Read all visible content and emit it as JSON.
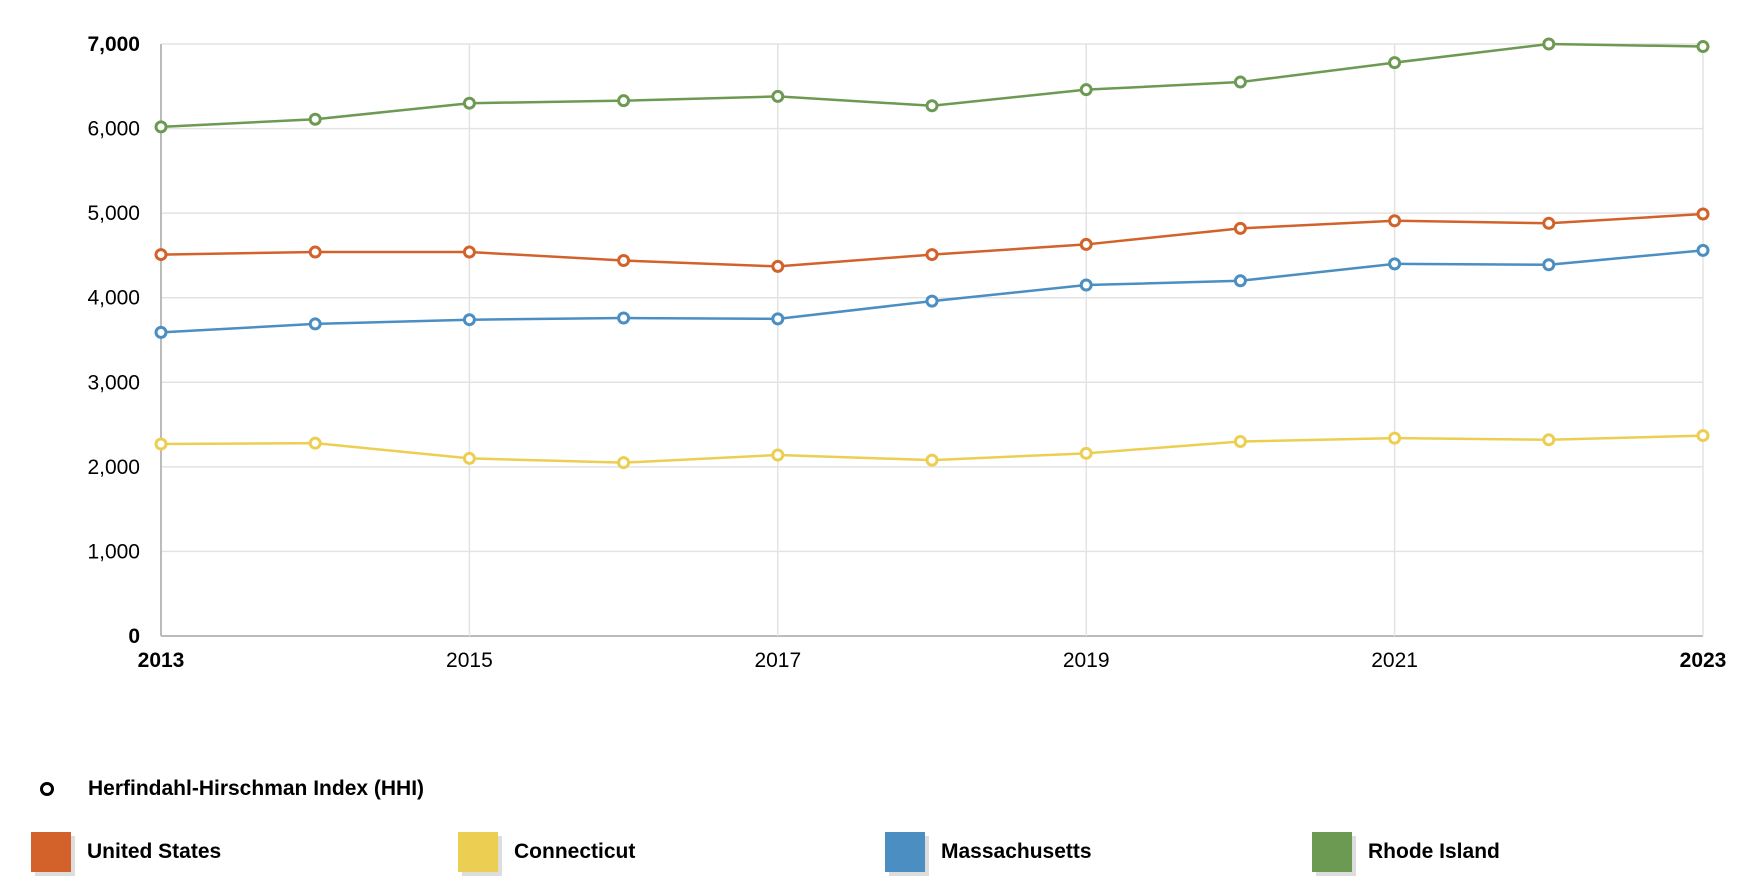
{
  "chart_data": {
    "type": "line",
    "x": [
      2013,
      2014,
      2015,
      2016,
      2017,
      2018,
      2019,
      2020,
      2021,
      2022,
      2023
    ],
    "x_tick_labels": [
      "2013",
      "2015",
      "2017",
      "2019",
      "2021",
      "2023"
    ],
    "y_tick_labels": [
      "0",
      "1,000",
      "2,000",
      "3,000",
      "4,000",
      "5,000",
      "6,000",
      "7,000"
    ],
    "ylim": [
      0,
      7000
    ],
    "xlim": [
      2013,
      2023
    ],
    "grid": true,
    "legend_position": "bottom",
    "marker_legend": "Herfindahl-Hirschman Index (HHI)",
    "series": [
      {
        "name": "United States",
        "color": "#d2622a",
        "values": [
          4510,
          4540,
          4540,
          4440,
          4370,
          4510,
          4630,
          4820,
          4910,
          4880,
          4990
        ]
      },
      {
        "name": "Connecticut",
        "color": "#eccf52",
        "values": [
          2270,
          2280,
          2100,
          2050,
          2140,
          2080,
          2160,
          2300,
          2340,
          2320,
          2370
        ]
      },
      {
        "name": "Massachusetts",
        "color": "#4a8ec2",
        "values": [
          3590,
          3690,
          3740,
          3760,
          3750,
          3960,
          4150,
          4200,
          4400,
          4390,
          4560
        ]
      },
      {
        "name": "Rhode Island",
        "color": "#6d9a53",
        "values": [
          6020,
          6110,
          6300,
          6330,
          6380,
          6270,
          6460,
          6550,
          6780,
          7000,
          6970
        ]
      }
    ]
  }
}
